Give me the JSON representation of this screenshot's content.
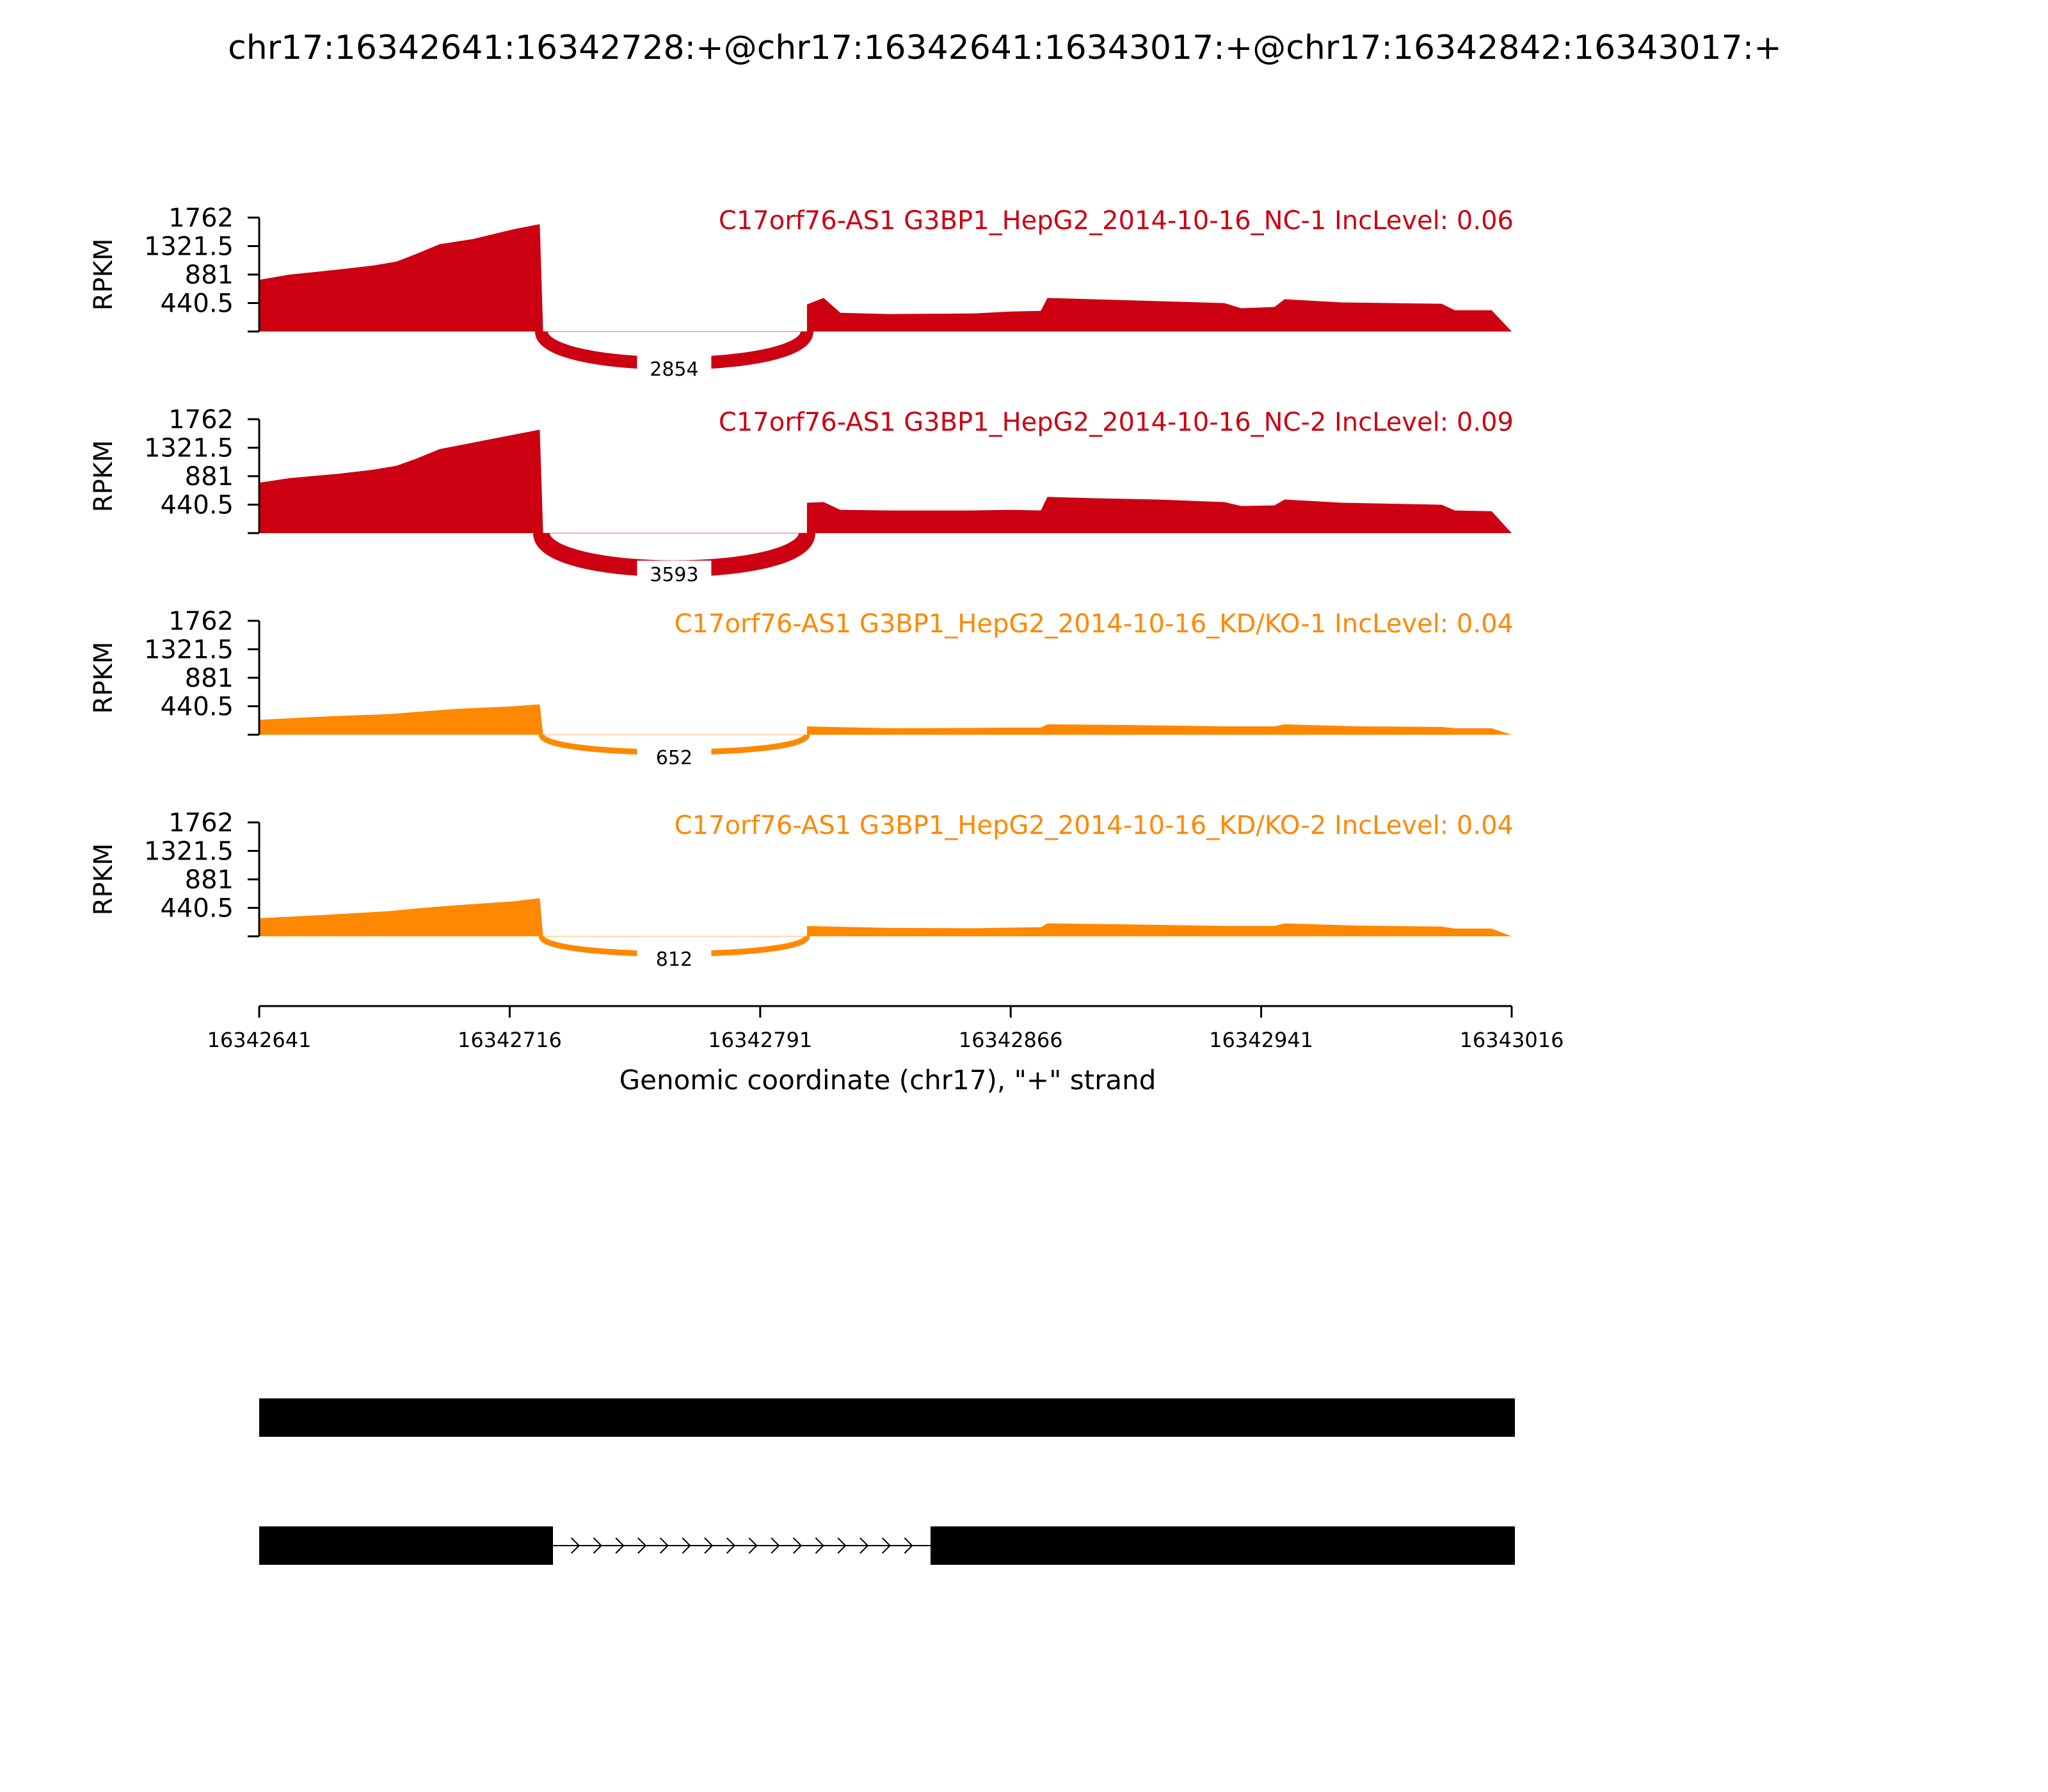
{
  "chart_data": {
    "type": "area",
    "title": "chr17:16342641:16342728:+@chr17:16342641:16343017:+@chr17:16342842:16343017:+",
    "xlabel": "Genomic coordinate (chr17), \"+\" strand",
    "ylabel": "RPKM",
    "xlim": [
      16342641,
      16343016
    ],
    "x_ticks": [
      "16342641",
      "16342716",
      "16342791",
      "16342866",
      "16342941",
      "16343016"
    ],
    "ylim": [
      0,
      1762
    ],
    "y_ticks": [
      "1762",
      "1321.5",
      "881",
      "440.5"
    ],
    "tracks": [
      {
        "name": "C17orf76-AS1 G3BP1_HepG2_2014-10-16_NC-1 IncLevel: 0.06",
        "color": "#cc0011",
        "junction_count": "2854",
        "coverage": [
          [
            16342641,
            800
          ],
          [
            16342650,
            880
          ],
          [
            16342665,
            960
          ],
          [
            16342675,
            1020
          ],
          [
            16342682,
            1080
          ],
          [
            16342688,
            1200
          ],
          [
            16342695,
            1350
          ],
          [
            16342705,
            1430
          ],
          [
            16342717,
            1580
          ],
          [
            16342725,
            1660
          ],
          [
            16342726,
            0
          ],
          [
            16342805,
            0
          ],
          [
            16342805,
            420
          ],
          [
            16342810,
            520
          ],
          [
            16342815,
            290
          ],
          [
            16342830,
            270
          ],
          [
            16342855,
            280
          ],
          [
            16342866,
            310
          ],
          [
            16342875,
            320
          ],
          [
            16342877,
            520
          ],
          [
            16342890,
            500
          ],
          [
            16342910,
            470
          ],
          [
            16342930,
            440
          ],
          [
            16342935,
            360
          ],
          [
            16342945,
            380
          ],
          [
            16342948,
            500
          ],
          [
            16342965,
            450
          ],
          [
            16342995,
            430
          ],
          [
            16342999,
            330
          ],
          [
            16343010,
            330
          ],
          [
            16343016,
            0
          ]
        ]
      },
      {
        "name": "C17orf76-AS1 G3BP1_HepG2_2014-10-16_NC-2 IncLevel: 0.09",
        "color": "#cc0011",
        "junction_count": "3593",
        "coverage": [
          [
            16342641,
            780
          ],
          [
            16342650,
            850
          ],
          [
            16342665,
            920
          ],
          [
            16342675,
            980
          ],
          [
            16342682,
            1040
          ],
          [
            16342688,
            1150
          ],
          [
            16342695,
            1300
          ],
          [
            16342705,
            1400
          ],
          [
            16342717,
            1520
          ],
          [
            16342725,
            1600
          ],
          [
            16342726,
            0
          ],
          [
            16342805,
            0
          ],
          [
            16342805,
            470
          ],
          [
            16342810,
            480
          ],
          [
            16342815,
            360
          ],
          [
            16342830,
            350
          ],
          [
            16342855,
            350
          ],
          [
            16342866,
            360
          ],
          [
            16342875,
            350
          ],
          [
            16342877,
            560
          ],
          [
            16342890,
            540
          ],
          [
            16342910,
            520
          ],
          [
            16342930,
            480
          ],
          [
            16342935,
            420
          ],
          [
            16342945,
            430
          ],
          [
            16342948,
            520
          ],
          [
            16342965,
            470
          ],
          [
            16342995,
            440
          ],
          [
            16342999,
            350
          ],
          [
            16343010,
            340
          ],
          [
            16343016,
            0
          ]
        ]
      },
      {
        "name": "C17orf76-AS1 G3BP1_HepG2_2014-10-16_KD/KO-1 IncLevel: 0.04",
        "color": "#ff8800",
        "junction_count": "652",
        "coverage": [
          [
            16342641,
            230
          ],
          [
            16342660,
            280
          ],
          [
            16342680,
            320
          ],
          [
            16342700,
            400
          ],
          [
            16342717,
            440
          ],
          [
            16342725,
            470
          ],
          [
            16342726,
            0
          ],
          [
            16342805,
            0
          ],
          [
            16342805,
            130
          ],
          [
            16342812,
            120
          ],
          [
            16342830,
            100
          ],
          [
            16342855,
            105
          ],
          [
            16342866,
            110
          ],
          [
            16342875,
            110
          ],
          [
            16342877,
            160
          ],
          [
            16342900,
            150
          ],
          [
            16342930,
            130
          ],
          [
            16342945,
            130
          ],
          [
            16342948,
            160
          ],
          [
            16342970,
            130
          ],
          [
            16342995,
            120
          ],
          [
            16342999,
            100
          ],
          [
            16343010,
            100
          ],
          [
            16343016,
            0
          ]
        ]
      },
      {
        "name": "C17orf76-AS1 G3BP1_HepG2_2014-10-16_KD/KO-2 IncLevel: 0.04",
        "color": "#ff8800",
        "junction_count": "812",
        "coverage": [
          [
            16342641,
            280
          ],
          [
            16342660,
            330
          ],
          [
            16342680,
            390
          ],
          [
            16342690,
            440
          ],
          [
            16342700,
            480
          ],
          [
            16342717,
            540
          ],
          [
            16342725,
            590
          ],
          [
            16342726,
            0
          ],
          [
            16342805,
            0
          ],
          [
            16342805,
            160
          ],
          [
            16342812,
            150
          ],
          [
            16342830,
            130
          ],
          [
            16342855,
            125
          ],
          [
            16342866,
            135
          ],
          [
            16342875,
            140
          ],
          [
            16342877,
            200
          ],
          [
            16342900,
            185
          ],
          [
            16342930,
            160
          ],
          [
            16342945,
            160
          ],
          [
            16342948,
            200
          ],
          [
            16342970,
            165
          ],
          [
            16342995,
            150
          ],
          [
            16342999,
            120
          ],
          [
            16343010,
            120
          ],
          [
            16343016,
            0
          ]
        ]
      }
    ],
    "isoforms": [
      {
        "exons": [
          [
            16342641,
            16343016
          ]
        ]
      },
      {
        "exons": [
          [
            16342641,
            16342728
          ],
          [
            16342842,
            16343016
          ]
        ]
      }
    ]
  }
}
